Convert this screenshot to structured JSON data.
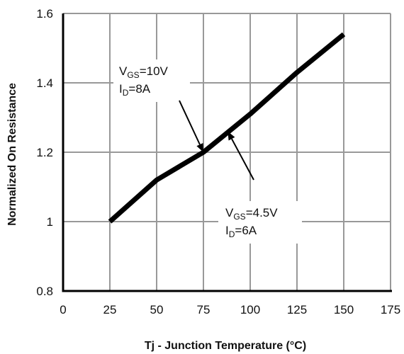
{
  "chart_data": {
    "type": "line",
    "xlabel": "Tj - Junction Temperature (°C)",
    "ylabel": "Normalized On Resistance",
    "xlim": [
      0,
      175
    ],
    "ylim": [
      0.8,
      1.6
    ],
    "x_ticks": [
      "0",
      "25",
      "50",
      "75",
      "100",
      "125",
      "150",
      "175"
    ],
    "y_ticks": [
      "0.8",
      "1",
      "1.2",
      "1.4",
      "1.6"
    ],
    "grid": true,
    "series": [
      {
        "x": [
          25,
          50,
          75,
          100,
          125,
          150
        ],
        "y": [
          1.0,
          1.12,
          1.2,
          1.31,
          1.43,
          1.54
        ]
      }
    ],
    "annotations": [
      {
        "line1_main": "V",
        "line1_sub": "GS",
        "line1_rest": "=10V",
        "line2_main": "I",
        "line2_sub": "D",
        "line2_rest": "=8A",
        "target_x": 75,
        "target_y": 1.2
      },
      {
        "line1_main": "V",
        "line1_sub": "GS",
        "line1_rest": "=4.5V",
        "line2_main": "I",
        "line2_sub": "D",
        "line2_rest": "=6A",
        "target_x": 88,
        "target_y": 1.26
      }
    ],
    "colors": {
      "line": "#000000",
      "grid": "#999999",
      "axis": "#000000"
    }
  }
}
